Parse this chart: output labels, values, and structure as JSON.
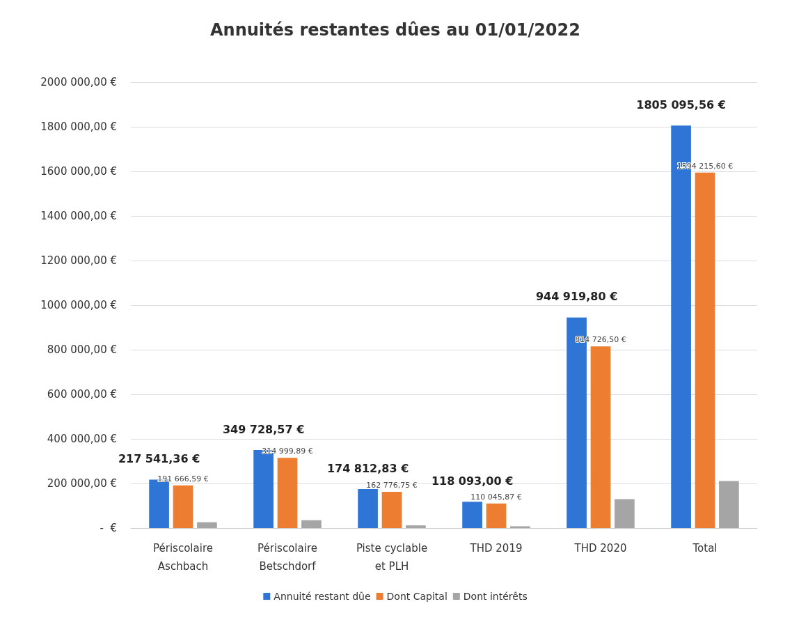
{
  "chart_data": {
    "type": "bar",
    "title": "Annuités restantes dûes au 01/01/2022",
    "categories": [
      "Périscolaire\nAschbach",
      "Périscolaire\nBetschdorf",
      "Piste cyclable\net PLH",
      "THD 2019",
      "THD 2020",
      "Total"
    ],
    "series": [
      {
        "name": "Annuité restant dûe",
        "color": "#2e75d6",
        "values": [
          217541.36,
          349728.57,
          174812.83,
          118093.0,
          944919.8,
          1805095.56
        ],
        "value_labels": [
          "217 541,36 €",
          "349 728,57 €",
          "174 812,83 €",
          "118 093,00 €",
          "944 919,80 €",
          "1805 095,56 €"
        ]
      },
      {
        "name": "Dont Capital",
        "color": "#ed7d31",
        "values": [
          191666.59,
          314999.89,
          162776.75,
          110045.87,
          814726.5,
          1594215.6
        ],
        "value_labels": [
          "191 666,59 €",
          "314 999,89 €",
          "162 776,75 €",
          "110 045,87 €",
          "814 726,50 €",
          "1594 215,60 €"
        ]
      },
      {
        "name": "Dont intérêts",
        "color": "#a5a5a5",
        "values": [
          26000,
          35000,
          12000,
          8000,
          130000,
          211000
        ]
      }
    ],
    "ylim": [
      0,
      2000000
    ],
    "yticks": [
      {
        "value": 0,
        "label": "-  €"
      },
      {
        "value": 200000,
        "label": "200 000,00 €"
      },
      {
        "value": 400000,
        "label": "400 000,00 €"
      },
      {
        "value": 600000,
        "label": "600 000,00 €"
      },
      {
        "value": 800000,
        "label": "800 000,00 €"
      },
      {
        "value": 1000000,
        "label": "1000 000,00 €"
      },
      {
        "value": 1200000,
        "label": "1200 000,00 €"
      },
      {
        "value": 1400000,
        "label": "1400 000,00 €"
      },
      {
        "value": 1600000,
        "label": "1600 000,00 €"
      },
      {
        "value": 1800000,
        "label": "1800 000,00 €"
      },
      {
        "value": 2000000,
        "label": "2000 000,00 €"
      }
    ],
    "grid": "y",
    "legend": "bottom"
  }
}
